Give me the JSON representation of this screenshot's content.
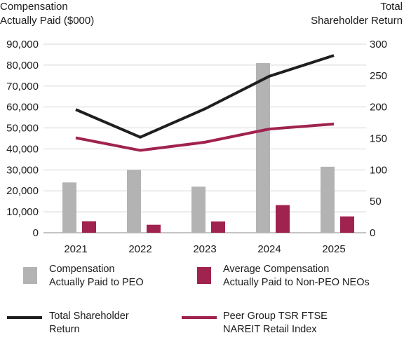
{
  "chart_data": {
    "type": "bar+line",
    "ylabel_left": [
      "Compensation",
      "Actually Paid ($000)"
    ],
    "ylabel_right": [
      "Total",
      "Shareholder Return"
    ],
    "categories": [
      "2021",
      "2022",
      "2023",
      "2024",
      "2025"
    ],
    "y_left": {
      "min": 0,
      "max": 90000,
      "ticks": [
        "0",
        "10,000",
        "20,000",
        "30,000",
        "40,000",
        "50,000",
        "60,000",
        "70,000",
        "80,000",
        "90,000"
      ]
    },
    "y_right": {
      "min": 0,
      "max": 300,
      "ticks": [
        "0",
        "50",
        "100",
        "150",
        "200",
        "250",
        "300"
      ]
    },
    "grid": true,
    "bar_series": [
      {
        "name": "Compensation Actually Paid to PEO",
        "legend_lines": [
          "Compensation",
          "Actually Paid to PEO"
        ],
        "color": "#b3b3b3",
        "values": [
          24000,
          30000,
          22000,
          81000,
          31500
        ]
      },
      {
        "name": "Average Compensation Actually Paid to Non-PEO NEOs",
        "legend_lines": [
          "Average Compensation",
          "Actually Paid to Non-PEO NEOs"
        ],
        "color": "#a0224f",
        "values": [
          5500,
          3800,
          5400,
          13200,
          7800
        ]
      }
    ],
    "line_series": [
      {
        "name": "Total Shareholder Return",
        "legend_lines": [
          "Total Shareholder",
          "Return"
        ],
        "color": "#1f1f1f",
        "axis": "right",
        "values": [
          196,
          152,
          197,
          249,
          282
        ]
      },
      {
        "name": "Peer Group TSR FTSE NAREIT Retail Index",
        "legend_lines": [
          "Peer Group TSR FTSE",
          "NAREIT Retail Index"
        ],
        "color": "#a0224f",
        "axis": "right",
        "values": [
          151,
          131,
          144,
          165,
          173
        ]
      }
    ]
  }
}
